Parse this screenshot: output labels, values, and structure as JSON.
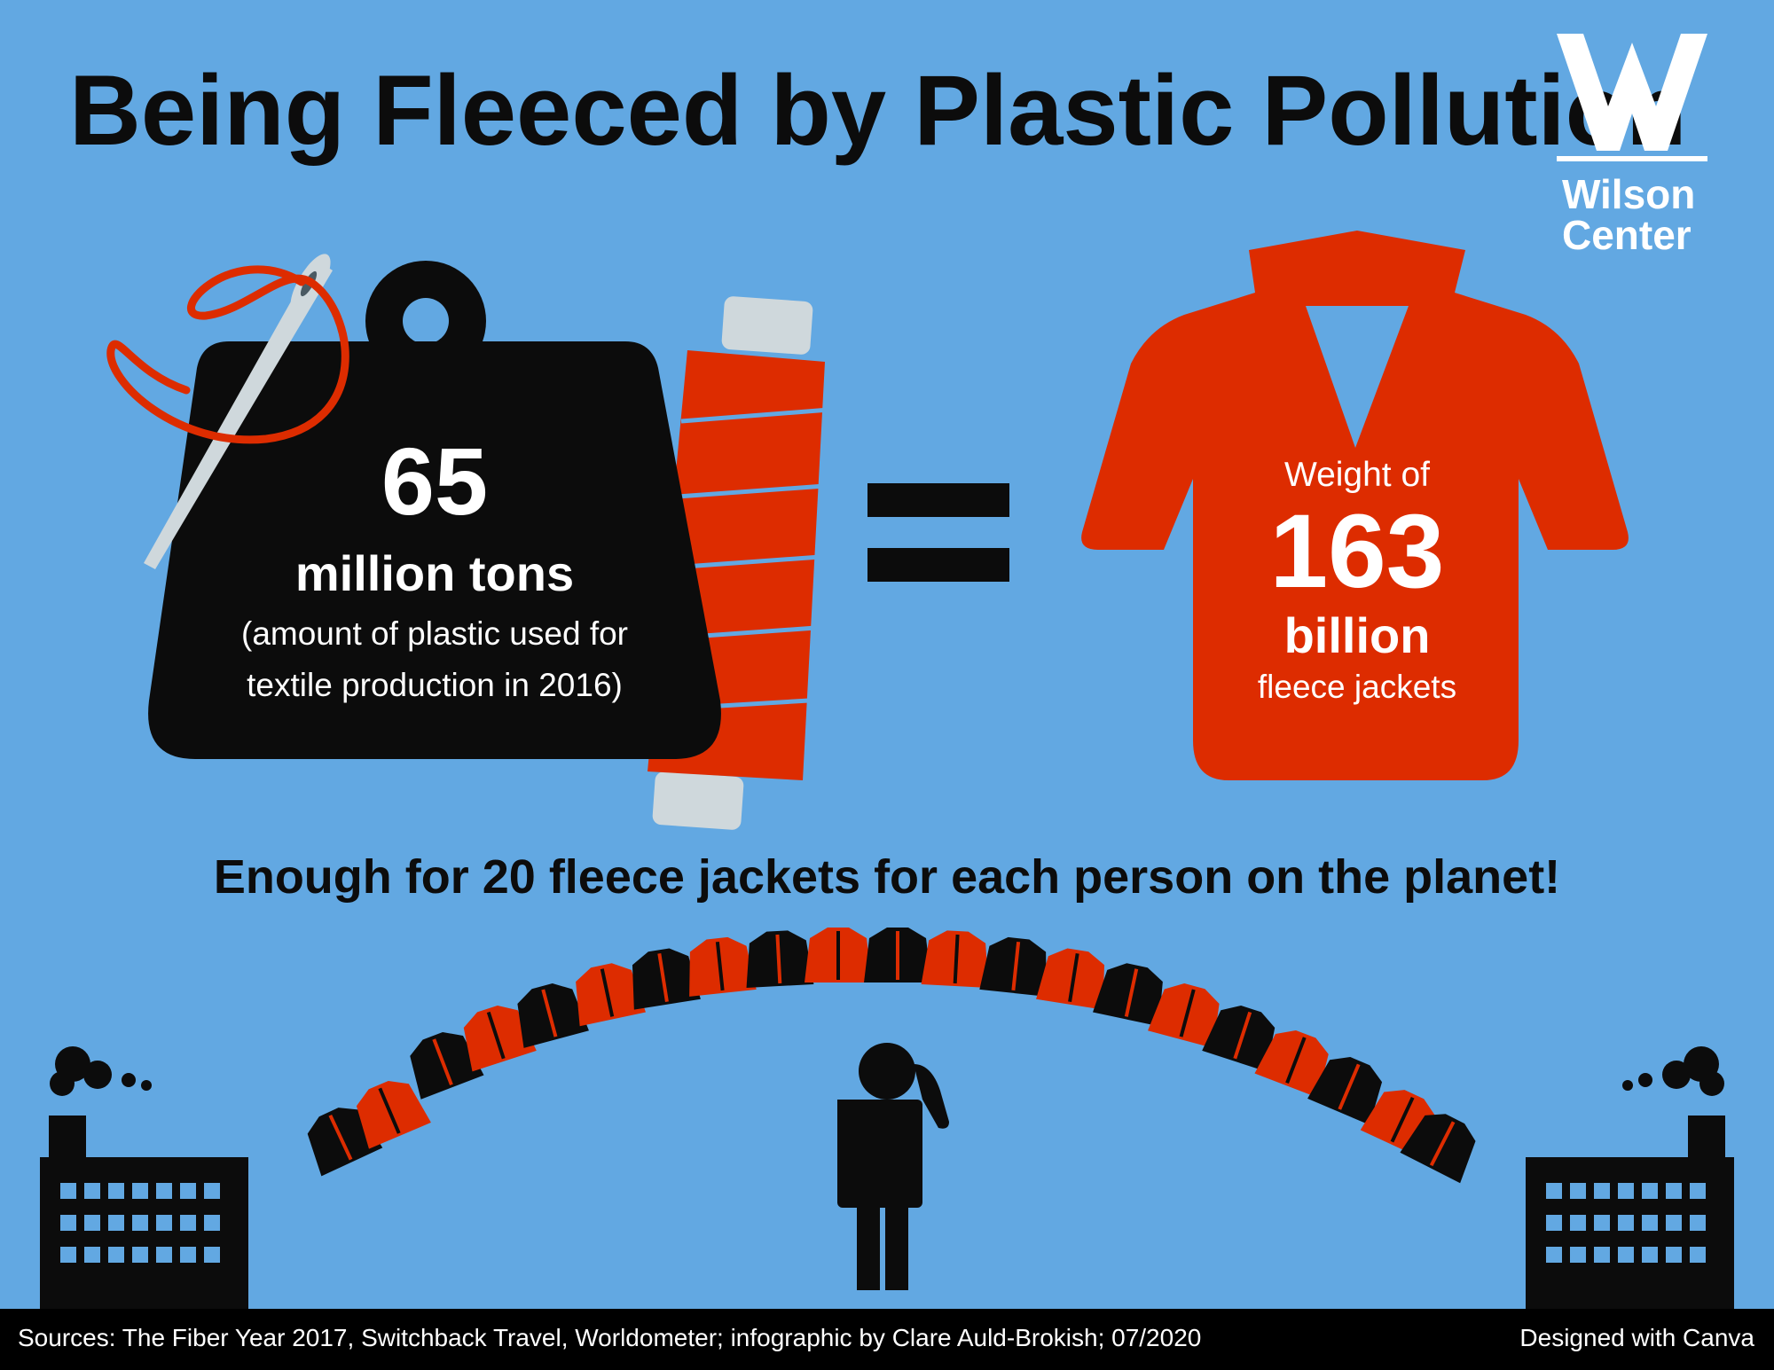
{
  "title": "Being Fleeced by Plastic Pollution",
  "logo": {
    "name_line1": "Wilson",
    "name_line2": "Center"
  },
  "weight": {
    "number": "65",
    "unit": "million tons",
    "description_line1": "(amount of plastic used for",
    "description_line2": "textile production in 2016)"
  },
  "jacket": {
    "prefix": "Weight of",
    "number": "163",
    "unit": "billion",
    "description": "fleece jackets"
  },
  "headline": "Enough for 20 fleece jackets for each person on the planet!",
  "footer": {
    "sources": "Sources: The Fiber Year 2017, Switchback Travel, Worldometer; infographic by Clare Auld-Brokish; 07/2020",
    "credit": "Designed with Canva"
  },
  "colors": {
    "background": "#62A8E2",
    "accent_red": "#DD2C00",
    "dark": "#0c0c0c",
    "needle": "#CFD8DC"
  },
  "icons": [
    "needle-icon",
    "thread-icon",
    "weight-icon",
    "spool-icon",
    "equals-icon",
    "jacket-icon",
    "factory-icon",
    "person-icon",
    "wilson-w-icon"
  ]
}
